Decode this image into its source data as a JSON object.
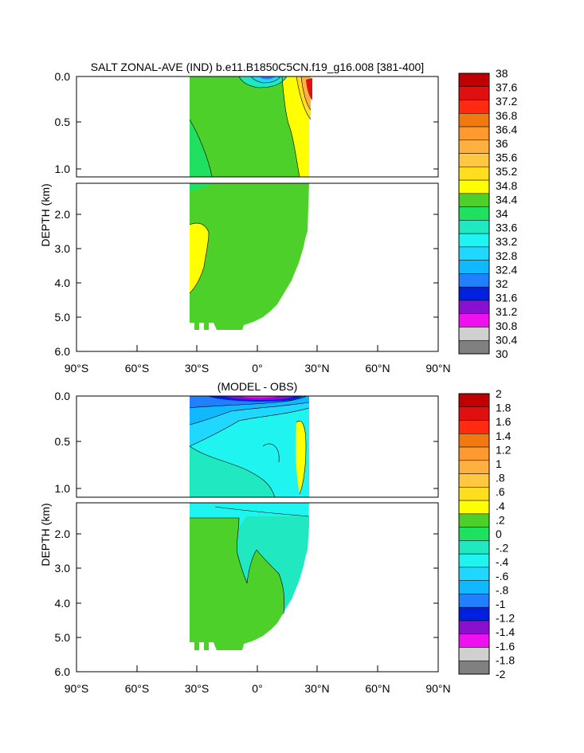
{
  "colors": {
    "land": "#ffffff",
    "frame": "#000000"
  },
  "chart_data": [
    {
      "type": "contour",
      "title": "SALT ZONAL-AVE (IND) b.e11.B1850C5CN.f19_g16.008 [381-400]",
      "ylabel": "DEPTH (km)",
      "x_tick_labels": [
        "90°S",
        "60°S",
        "30°S",
        "0°",
        "30°N",
        "60°N",
        "90°N"
      ],
      "upper_y_tick_labels": [
        "0.0",
        "0.5",
        "1.0"
      ],
      "lower_y_tick_labels": [
        "2.0",
        "3.0",
        "4.0",
        "5.0",
        "6.0"
      ],
      "xlim": [
        -90,
        90
      ],
      "ylim_km": [
        6.0,
        0.0
      ],
      "ocean_extent": {
        "south_lat": -34,
        "north_lat": 26,
        "bottom_profile": [
          [
            -34,
            5.35
          ],
          [
            -30,
            5.35
          ],
          [
            -20,
            5.35
          ],
          [
            -10,
            5.2
          ],
          [
            0,
            5.0
          ],
          [
            5,
            4.7
          ],
          [
            10,
            4.4
          ],
          [
            15,
            4.0
          ],
          [
            20,
            3.4
          ],
          [
            23,
            2.8
          ],
          [
            25,
            2.3
          ],
          [
            26,
            1.5
          ]
        ]
      },
      "colorbar": {
        "labels": [
          "38",
          "37.6",
          "37.2",
          "36.8",
          "36.4",
          "36",
          "35.6",
          "35.2",
          "34.8",
          "34.4",
          "34",
          "33.6",
          "33.2",
          "32.8",
          "32.4",
          "32",
          "31.6",
          "31.2",
          "30.8",
          "30.4",
          "30"
        ],
        "colors": [
          "#c00000",
          "#e01010",
          "#ff2a10",
          "#f07a10",
          "#ff9a30",
          "#ffb040",
          "#ffc840",
          "#ffde20",
          "#ffff00",
          "#4ed02a",
          "#20e060",
          "#20e8c0",
          "#20f4f0",
          "#20d8ff",
          "#10b8ff",
          "#2080ff",
          "#0020e0",
          "#8a10d0",
          "#ee10ee",
          "#d0d0d0",
          "#808080"
        ]
      },
      "dominant_value_range": "34.4–34.8",
      "regions": [
        {
          "value": "34.4–34.8",
          "description": "most of basin"
        },
        {
          "value": "34.8–35.2",
          "description": "northern upper ocean (0–25°N, 0–1.0 km) and deep southern patch (30°S–25°S, 2.3–4.3 km)"
        },
        {
          "value": "34.0–34.4",
          "description": "southern intermediate water near 30°S"
        },
        {
          "value": "35.2–38",
          "description": "surface maximum near 25°N"
        },
        {
          "value": "32–34",
          "description": "fresh surface waters near 0–20°N"
        }
      ]
    },
    {
      "type": "contour",
      "title": "(MODEL - OBS)",
      "ylabel": "DEPTH (km)",
      "x_tick_labels": [
        "90°S",
        "60°S",
        "30°S",
        "0°",
        "30°N",
        "60°N",
        "90°N"
      ],
      "upper_y_tick_labels": [
        "0.0",
        "0.5",
        "1.0"
      ],
      "lower_y_tick_labels": [
        "2.0",
        "3.0",
        "4.0",
        "5.0",
        "6.0"
      ],
      "xlim": [
        -90,
        90
      ],
      "ylim_km": [
        6.0,
        0.0
      ],
      "colorbar": {
        "labels": [
          "2",
          "1.8",
          "1.6",
          "1.4",
          "1.2",
          "1",
          ".8",
          ".6",
          ".4",
          ".2",
          "0",
          "-.2",
          "-.4",
          "-.6",
          "-.8",
          "-1",
          "-1.2",
          "-1.4",
          "-1.6",
          "-1.8",
          "-2"
        ],
        "colors": [
          "#c00000",
          "#e01010",
          "#ff2a10",
          "#f07a10",
          "#ff9a30",
          "#ffb040",
          "#ffc840",
          "#ffde20",
          "#ffff00",
          "#4ed02a",
          "#20e060",
          "#20e8c0",
          "#20f4f0",
          "#20d8ff",
          "#10b8ff",
          "#2080ff",
          "#0020e0",
          "#8a10d0",
          "#ee10ee",
          "#d0d0d0",
          "#808080"
        ]
      },
      "regions": [
        {
          "value": "-0.6–-0.4",
          "description": "upper ocean south of 20°S (0–0.6 km)"
        },
        {
          "value": "-0.4–-0.2",
          "description": "intermediate waters (0.3–1.3 km)"
        },
        {
          "value": "-0.2–0",
          "description": "intermediate/deep north of 10°S (1.2–4 km)"
        },
        {
          "value": "0–0.2",
          "description": "deep southern basin"
        },
        {
          "value": "-2–-1",
          "description": "surface layer 10°S–20°N"
        }
      ]
    }
  ]
}
